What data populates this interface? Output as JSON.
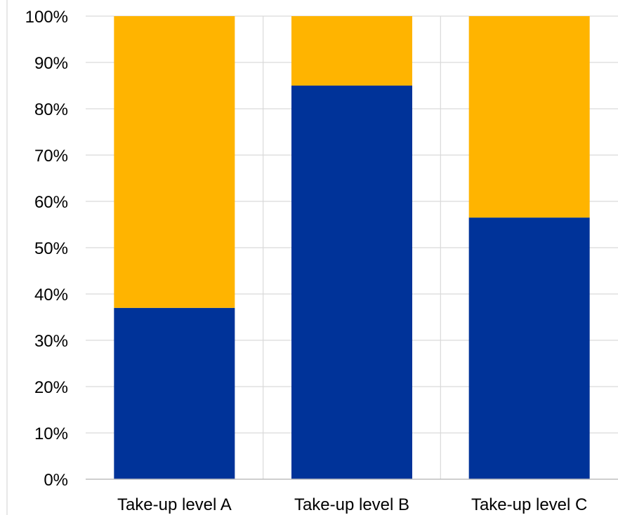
{
  "chart_data": {
    "type": "bar",
    "stacked": true,
    "orientation": "vertical",
    "categories": [
      "Take-up level A",
      "Take-up level B",
      "Take-up level C"
    ],
    "series": [
      {
        "values": [
          37,
          85,
          56.5
        ],
        "color": "#003399"
      },
      {
        "values": [
          63,
          15,
          43.5
        ],
        "color": "#ffb400"
      }
    ],
    "y_ticks": [
      "0%",
      "10%",
      "20%",
      "30%",
      "40%",
      "50%",
      "60%",
      "70%",
      "80%",
      "90%",
      "100%"
    ],
    "ylim": [
      0,
      100
    ],
    "y_unit": "%",
    "grid": true,
    "legend": "none"
  }
}
